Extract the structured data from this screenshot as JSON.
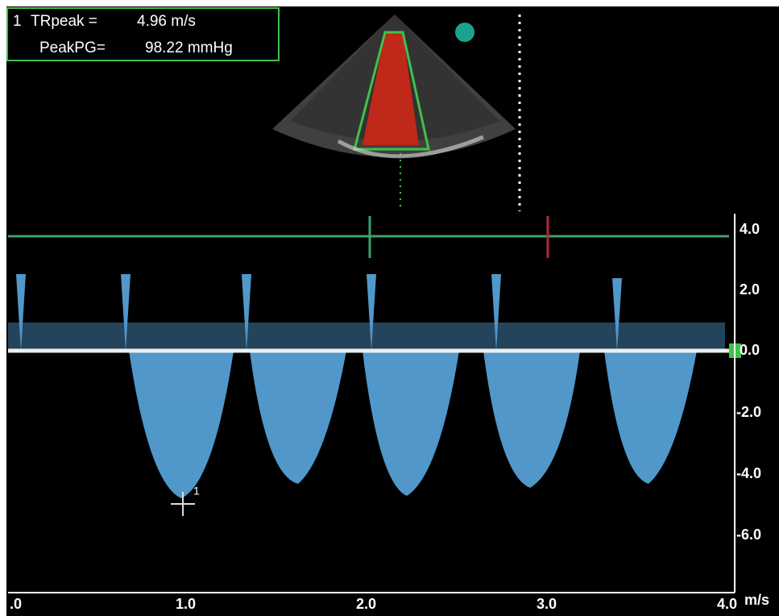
{
  "measurement": {
    "index": "1",
    "lines": [
      {
        "label": "TRpeak =",
        "value": "4.96 m/s"
      },
      {
        "label": "PeakPG=",
        "value": "98.22 mmHg"
      }
    ]
  },
  "velocity_scale": {
    "labels": [
      "4.0",
      "2.0",
      "0.0",
      "-2.0",
      "-4.0",
      "-6.0"
    ],
    "unit": "m/s"
  },
  "time_scale": {
    "labels": [
      ".0",
      "1.0",
      "2.0",
      "3.0",
      "4.0"
    ]
  },
  "cursor_label": "1"
}
